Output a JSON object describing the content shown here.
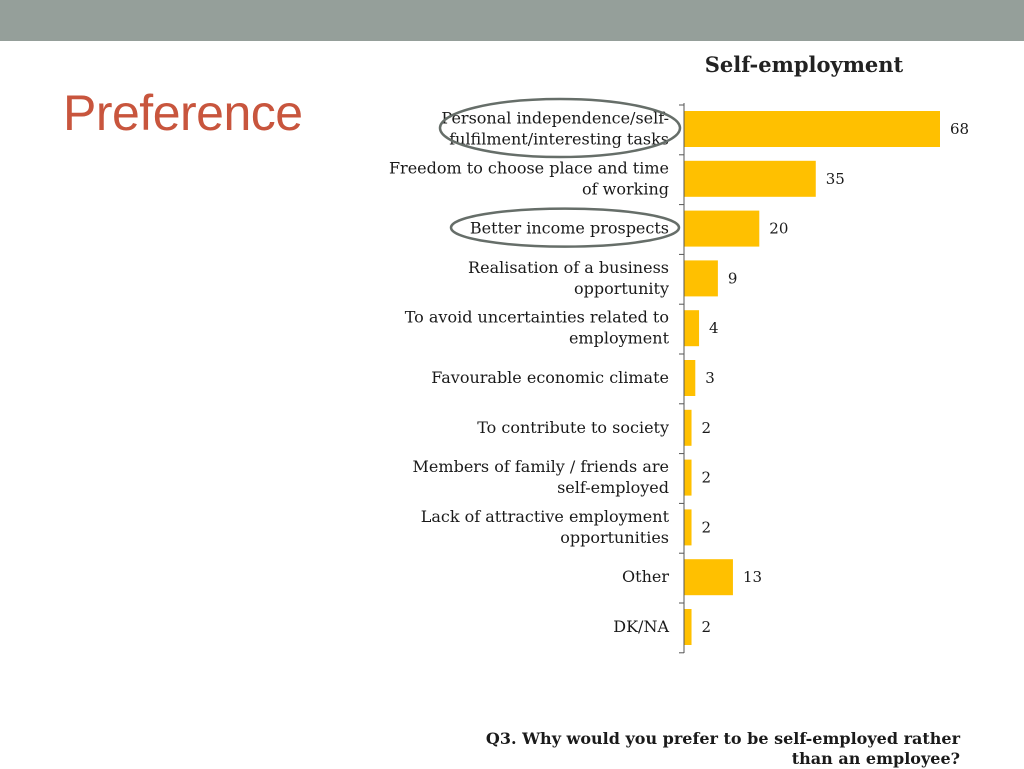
{
  "slide": {
    "title": "Preference"
  },
  "question": {
    "line1": "Q3. Why would you prefer to be self-employed rather",
    "line2": "than an employee?"
  },
  "colors": {
    "bar": "#ffc000",
    "top_bar": "#959f9a",
    "title": "#c8553d",
    "highlight_ellipse": "#666e69"
  },
  "chart_data": {
    "type": "bar",
    "orientation": "horizontal",
    "title": "Self-employment",
    "categories": [
      [
        "Personal independence/self-",
        "fulfilment/interesting tasks"
      ],
      [
        "Freedom to choose place and time",
        "of working"
      ],
      [
        "Better income prospects"
      ],
      [
        "Realisation of a business",
        "opportunity"
      ],
      [
        "To avoid uncertainties related to",
        "employment"
      ],
      [
        "Favourable economic climate"
      ],
      [
        "To contribute to society"
      ],
      [
        "Members of family / friends are",
        "self-employed"
      ],
      [
        "Lack of attractive employment",
        "opportunities"
      ],
      [
        "Other"
      ],
      [
        "DK/NA"
      ]
    ],
    "values": [
      68,
      35,
      20,
      9,
      4,
      3,
      2,
      2,
      2,
      13,
      2
    ],
    "highlighted": [
      0,
      2
    ],
    "xlim": [
      0,
      68
    ],
    "grid": false,
    "legend": "none"
  }
}
